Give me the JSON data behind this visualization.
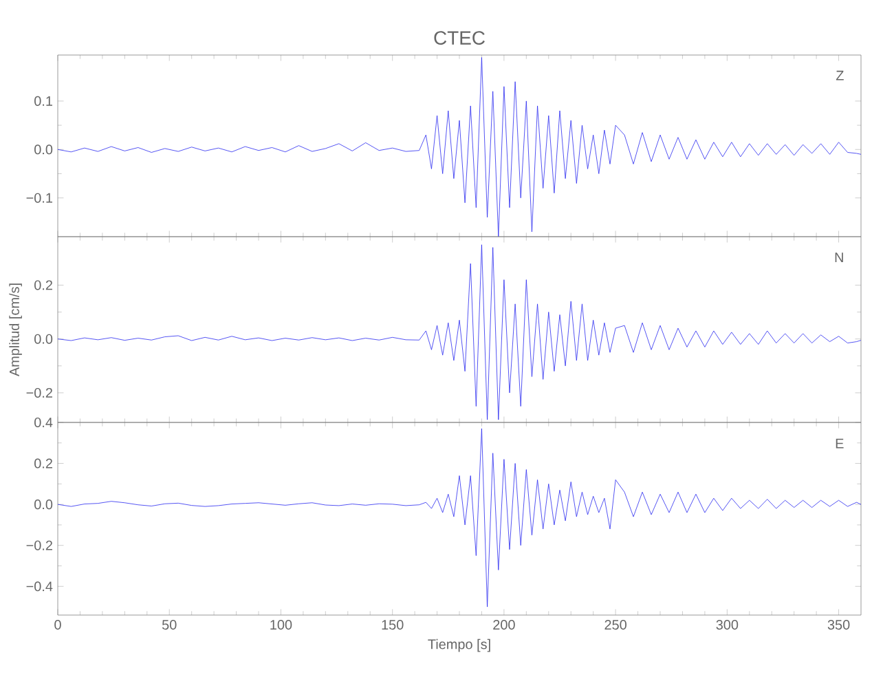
{
  "chart_data": [
    {
      "type": "line",
      "title": "CTEC",
      "annotations": [
        "Z"
      ],
      "color": "#2a2af0",
      "xlim": [
        0,
        360
      ],
      "xticks": [
        0,
        50,
        100,
        150,
        200,
        250,
        300,
        350
      ],
      "ylim": [
        -0.18,
        0.195
      ],
      "yticks": [
        {
          "value": -0.1,
          "label": "−0.1"
        },
        {
          "value": 0,
          "label": "0.0"
        },
        0.1
      ],
      "tick_labels": "y",
      "x": [
        0,
        6,
        12,
        18,
        24,
        30,
        36,
        42,
        48,
        54,
        60,
        66,
        72,
        78,
        84,
        90,
        96,
        102,
        108,
        114,
        120,
        126,
        132,
        138,
        144,
        150,
        156,
        162,
        165,
        167.5,
        170,
        172.5,
        175,
        177.5,
        180,
        182.5,
        185,
        187.5,
        190,
        192.5,
        195,
        197.5,
        200,
        202.5,
        205,
        207.5,
        210,
        212.5,
        215,
        217.5,
        220,
        222.5,
        225,
        227.5,
        230,
        232.5,
        235,
        237.5,
        240,
        242.5,
        245,
        247.5,
        250,
        254,
        258,
        262,
        266,
        270,
        274,
        278,
        282,
        286,
        290,
        294,
        298,
        302,
        306,
        310,
        314,
        318,
        322,
        326,
        330,
        334,
        338,
        342,
        346,
        350,
        354,
        358,
        360
      ],
      "values": [
        0,
        -0.005,
        0.003,
        -0.004,
        0.006,
        -0.003,
        0.004,
        -0.006,
        0.002,
        -0.004,
        0.005,
        -0.003,
        0.003,
        -0.005,
        0.006,
        -0.002,
        0.004,
        -0.005,
        0.008,
        -0.004,
        0.002,
        0.012,
        -0.003,
        0.014,
        -0.002,
        0.003,
        -0.004,
        -0.002,
        0.03,
        -0.04,
        0.07,
        -0.05,
        0.08,
        -0.06,
        0.06,
        -0.11,
        0.09,
        -0.12,
        0.19,
        -0.14,
        0.12,
        -0.18,
        0.13,
        -0.12,
        0.14,
        -0.1,
        0.1,
        -0.17,
        0.09,
        -0.08,
        0.07,
        -0.09,
        0.08,
        -0.06,
        0.06,
        -0.07,
        0.05,
        -0.04,
        0.03,
        -0.05,
        0.04,
        -0.03,
        0.05,
        0.03,
        -0.03,
        0.035,
        -0.025,
        0.03,
        -0.02,
        0.025,
        -0.02,
        0.02,
        -0.02,
        0.015,
        -0.015,
        0.015,
        -0.015,
        0.012,
        -0.012,
        0.012,
        -0.01,
        0.01,
        -0.012,
        0.01,
        -0.008,
        0.012,
        -0.01,
        0.015,
        -0.006,
        -0.008,
        -0.01
      ]
    },
    {
      "type": "line",
      "ylabel": "Amplitud [cm/s]",
      "annotations": [
        "N"
      ],
      "color": "#2a2af0",
      "xlim": [
        0,
        360
      ],
      "xticks": [
        0,
        50,
        100,
        150,
        200,
        250,
        300,
        350
      ],
      "ylim": [
        -0.31,
        0.38
      ],
      "yticks": [
        {
          "value": -0.2,
          "label": "−0.2"
        },
        {
          "value": 0,
          "label": "0.0"
        },
        0.2
      ],
      "tick_labels": "y",
      "x": [
        0,
        6,
        12,
        18,
        24,
        30,
        36,
        42,
        48,
        54,
        60,
        66,
        72,
        78,
        84,
        90,
        96,
        102,
        108,
        114,
        120,
        126,
        132,
        138,
        144,
        150,
        156,
        162,
        165,
        167.5,
        170,
        172.5,
        175,
        177.5,
        180,
        182.5,
        185,
        187.5,
        190,
        192.5,
        195,
        197.5,
        200,
        202.5,
        205,
        207.5,
        210,
        212.5,
        215,
        217.5,
        220,
        222.5,
        225,
        227.5,
        230,
        232.5,
        235,
        237.5,
        240,
        242.5,
        245,
        247.5,
        250,
        254,
        258,
        262,
        266,
        270,
        274,
        278,
        282,
        286,
        290,
        294,
        298,
        302,
        306,
        310,
        314,
        318,
        322,
        326,
        330,
        334,
        338,
        342,
        346,
        350,
        354,
        358,
        360
      ],
      "values": [
        0,
        -0.006,
        0.004,
        -0.003,
        0.005,
        -0.005,
        0.003,
        -0.004,
        0.008,
        0.012,
        -0.006,
        0.006,
        -0.004,
        0.01,
        -0.003,
        0.004,
        -0.006,
        0.003,
        -0.004,
        0.005,
        -0.003,
        0.004,
        -0.006,
        0.003,
        -0.004,
        0.006,
        -0.003,
        -0.004,
        0.03,
        -0.04,
        0.05,
        -0.06,
        0.06,
        -0.08,
        0.07,
        -0.12,
        0.28,
        -0.25,
        0.35,
        -0.3,
        0.34,
        -0.3,
        0.22,
        -0.2,
        0.13,
        -0.25,
        0.22,
        -0.14,
        0.13,
        -0.15,
        0.1,
        -0.12,
        0.09,
        -0.1,
        0.14,
        -0.08,
        0.13,
        -0.08,
        0.07,
        -0.06,
        0.06,
        -0.05,
        0.04,
        0.05,
        -0.05,
        0.06,
        -0.04,
        0.05,
        -0.04,
        0.04,
        -0.03,
        0.03,
        -0.03,
        0.03,
        -0.02,
        0.025,
        -0.02,
        0.02,
        -0.02,
        0.03,
        -0.015,
        0.02,
        -0.015,
        0.02,
        -0.015,
        0.015,
        -0.01,
        0.01,
        -0.015,
        -0.01,
        -0.005
      ]
    },
    {
      "type": "line",
      "xlabel": "Tiempo [s]",
      "annotations": [
        "E"
      ],
      "color": "#2a2af0",
      "xlim": [
        0,
        360
      ],
      "xticks": [
        0,
        50,
        100,
        150,
        200,
        250,
        300,
        350
      ],
      "ylim": [
        -0.54,
        0.4
      ],
      "yticks": [
        {
          "value": -0.4,
          "label": "−0.4"
        },
        {
          "value": -0.2,
          "label": "−0.2"
        },
        {
          "value": 0,
          "label": "0.0"
        },
        0.2,
        0.4
      ],
      "x": [
        0,
        6,
        12,
        18,
        24,
        30,
        36,
        42,
        48,
        54,
        60,
        66,
        72,
        78,
        84,
        90,
        96,
        102,
        108,
        114,
        120,
        126,
        132,
        138,
        144,
        150,
        156,
        162,
        165,
        167.5,
        170,
        172.5,
        175,
        177.5,
        180,
        182.5,
        185,
        187.5,
        190,
        192.5,
        195,
        197.5,
        200,
        202.5,
        205,
        207.5,
        210,
        212.5,
        215,
        217.5,
        220,
        222.5,
        225,
        227.5,
        230,
        232.5,
        235,
        237.5,
        240,
        242.5,
        245,
        247.5,
        250,
        254,
        258,
        262,
        266,
        270,
        274,
        278,
        282,
        286,
        290,
        294,
        298,
        302,
        306,
        310,
        314,
        318,
        322,
        326,
        330,
        334,
        338,
        342,
        346,
        350,
        354,
        358,
        360
      ],
      "values": [
        0,
        -0.01,
        0.002,
        0.005,
        0.015,
        0.008,
        -0.002,
        -0.008,
        0.003,
        0.006,
        -0.005,
        -0.01,
        -0.006,
        0.002,
        0.005,
        0.008,
        0.002,
        -0.004,
        0.003,
        0.008,
        -0.003,
        -0.006,
        0.002,
        -0.004,
        0.003,
        0.001,
        -0.006,
        -0.002,
        0.01,
        -0.02,
        0.03,
        -0.04,
        0.05,
        -0.06,
        0.14,
        -0.1,
        0.14,
        -0.25,
        0.37,
        -0.5,
        0.25,
        -0.32,
        0.22,
        -0.22,
        0.2,
        -0.2,
        0.17,
        -0.15,
        0.12,
        -0.12,
        0.1,
        -0.1,
        0.07,
        -0.08,
        0.11,
        -0.06,
        0.06,
        -0.05,
        0.04,
        -0.04,
        0.03,
        -0.12,
        0.12,
        0.06,
        -0.06,
        0.06,
        -0.05,
        0.05,
        -0.04,
        0.06,
        -0.04,
        0.05,
        -0.04,
        0.03,
        -0.03,
        0.03,
        -0.02,
        0.02,
        -0.02,
        0.025,
        -0.02,
        0.02,
        -0.015,
        0.02,
        -0.015,
        0.02,
        -0.01,
        0.02,
        -0.01,
        0.01,
        0.0
      ]
    }
  ]
}
